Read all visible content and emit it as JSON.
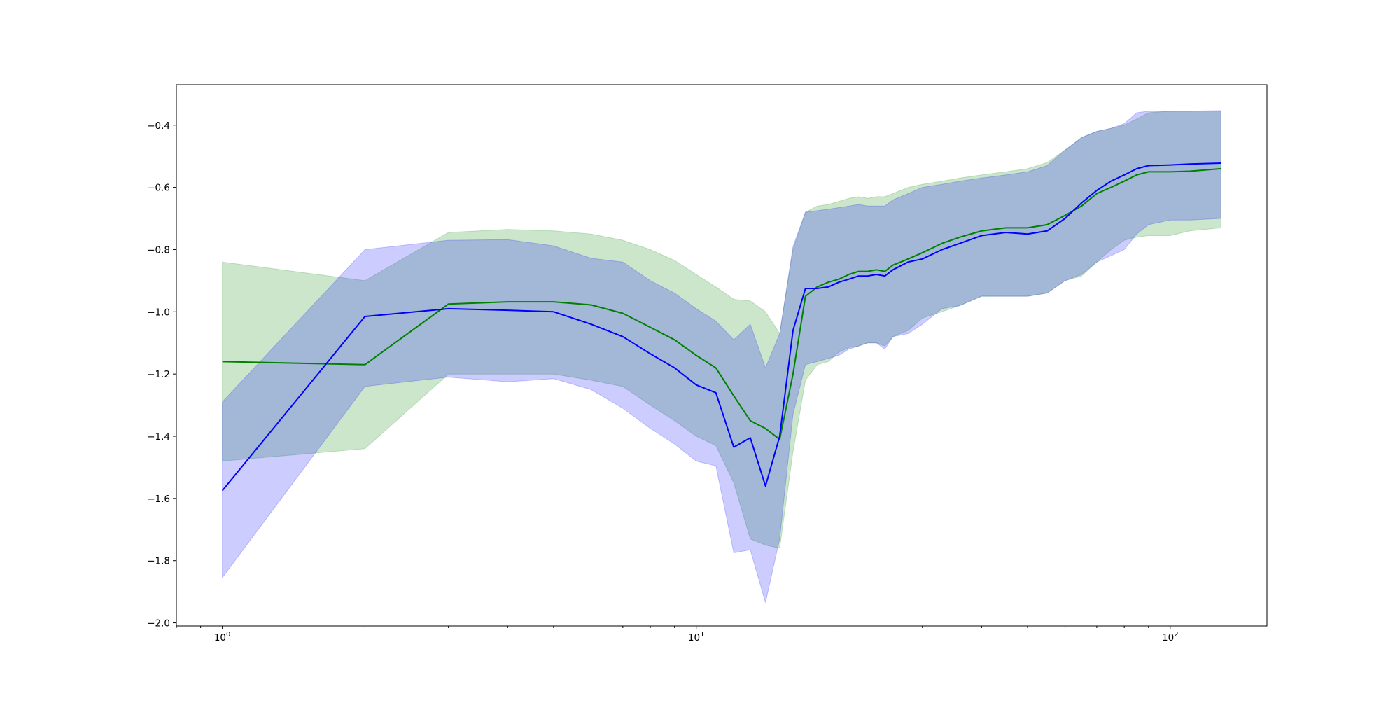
{
  "chart_data": {
    "type": "line",
    "xscale": "log",
    "xlim": [
      0.8,
      160
    ],
    "ylim": [
      -2.01,
      -0.27
    ],
    "x_ticks": [
      {
        "value": 1,
        "base": "10",
        "exp": "0"
      },
      {
        "value": 10,
        "base": "10",
        "exp": "1"
      },
      {
        "value": 100,
        "base": "10",
        "exp": "2"
      }
    ],
    "y_ticks": [
      {
        "value": -0.4,
        "label": "−0.4"
      },
      {
        "value": -0.6,
        "label": "−0.6"
      },
      {
        "value": -0.8,
        "label": "−0.8"
      },
      {
        "value": -1.0,
        "label": "−1.0"
      },
      {
        "value": -1.2,
        "label": "−1.2"
      },
      {
        "value": -1.4,
        "label": "−1.4"
      },
      {
        "value": -1.6,
        "label": "−1.6"
      },
      {
        "value": -1.8,
        "label": "−1.8"
      },
      {
        "value": -2.0,
        "label": "−2.0"
      }
    ],
    "grid": false,
    "legend": "none",
    "series": [
      {
        "color": "#008000",
        "band_color": "#008000",
        "band_opacity": 0.2,
        "x": [
          1,
          2,
          3,
          4,
          5,
          6,
          7,
          8,
          9,
          10,
          11,
          12,
          13,
          14,
          15,
          16,
          17,
          18,
          19,
          20,
          21,
          22,
          23,
          24,
          25,
          26,
          28,
          30,
          33,
          36,
          40,
          45,
          50,
          55,
          60,
          65,
          70,
          75,
          80,
          85,
          90,
          100,
          110,
          128
        ],
        "mean": [
          -1.16,
          -1.17,
          -0.975,
          -0.968,
          -0.968,
          -0.978,
          -1.005,
          -1.05,
          -1.09,
          -1.14,
          -1.18,
          -1.27,
          -1.35,
          -1.375,
          -1.41,
          -1.2,
          -0.95,
          -0.92,
          -0.905,
          -0.895,
          -0.88,
          -0.87,
          -0.87,
          -0.865,
          -0.87,
          -0.85,
          -0.83,
          -0.81,
          -0.78,
          -0.76,
          -0.74,
          -0.73,
          -0.73,
          -0.72,
          -0.69,
          -0.66,
          -0.62,
          -0.6,
          -0.58,
          -0.56,
          -0.55,
          -0.55,
          -0.548,
          -0.54
        ],
        "upper": [
          -0.84,
          -0.9,
          -0.745,
          -0.735,
          -0.74,
          -0.75,
          -0.77,
          -0.8,
          -0.835,
          -0.88,
          -0.92,
          -0.96,
          -0.965,
          -1.0,
          -1.07,
          -0.8,
          -0.68,
          -0.66,
          -0.655,
          -0.645,
          -0.635,
          -0.63,
          -0.635,
          -0.63,
          -0.63,
          -0.62,
          -0.6,
          -0.59,
          -0.58,
          -0.57,
          -0.56,
          -0.55,
          -0.54,
          -0.52,
          -0.48,
          -0.44,
          -0.42,
          -0.41,
          -0.4,
          -0.38,
          -0.36,
          -0.355,
          -0.355,
          -0.355
        ],
        "lower": [
          -1.48,
          -1.44,
          -1.2,
          -1.2,
          -1.2,
          -1.22,
          -1.24,
          -1.3,
          -1.35,
          -1.4,
          -1.43,
          -1.55,
          -1.73,
          -1.75,
          -1.76,
          -1.45,
          -1.22,
          -1.17,
          -1.16,
          -1.13,
          -1.115,
          -1.11,
          -1.1,
          -1.1,
          -1.11,
          -1.08,
          -1.06,
          -1.02,
          -1.0,
          -0.98,
          -0.95,
          -0.95,
          -0.95,
          -0.94,
          -0.9,
          -0.885,
          -0.84,
          -0.8,
          -0.77,
          -0.76,
          -0.755,
          -0.755,
          -0.74,
          -0.73
        ]
      },
      {
        "color": "#0000ff",
        "band_color": "#0000ff",
        "band_opacity": 0.2,
        "x": [
          1,
          2,
          3,
          4,
          5,
          6,
          7,
          8,
          9,
          10,
          11,
          12,
          13,
          14,
          15,
          16,
          17,
          18,
          19,
          20,
          21,
          22,
          23,
          24,
          25,
          26,
          28,
          30,
          33,
          36,
          40,
          45,
          50,
          55,
          60,
          65,
          70,
          75,
          80,
          85,
          90,
          100,
          110,
          128
        ],
        "mean": [
          -1.575,
          -1.015,
          -0.99,
          -0.995,
          -1.0,
          -1.04,
          -1.08,
          -1.135,
          -1.18,
          -1.235,
          -1.26,
          -1.435,
          -1.405,
          -1.56,
          -1.4,
          -1.06,
          -0.925,
          -0.925,
          -0.92,
          -0.905,
          -0.895,
          -0.885,
          -0.885,
          -0.88,
          -0.885,
          -0.865,
          -0.84,
          -0.83,
          -0.8,
          -0.78,
          -0.755,
          -0.745,
          -0.75,
          -0.74,
          -0.7,
          -0.65,
          -0.61,
          -0.58,
          -0.56,
          -0.54,
          -0.53,
          -0.528,
          -0.525,
          -0.522
        ],
        "upper": [
          -1.29,
          -0.8,
          -0.77,
          -0.768,
          -0.788,
          -0.828,
          -0.84,
          -0.9,
          -0.94,
          -0.99,
          -1.03,
          -1.09,
          -1.04,
          -1.18,
          -1.07,
          -0.79,
          -0.68,
          -0.675,
          -0.67,
          -0.665,
          -0.66,
          -0.655,
          -0.66,
          -0.66,
          -0.66,
          -0.64,
          -0.62,
          -0.6,
          -0.59,
          -0.58,
          -0.57,
          -0.56,
          -0.55,
          -0.53,
          -0.48,
          -0.44,
          -0.42,
          -0.41,
          -0.395,
          -0.36,
          -0.355,
          -0.355,
          -0.355,
          -0.353
        ],
        "lower": [
          -1.855,
          -1.24,
          -1.21,
          -1.225,
          -1.215,
          -1.25,
          -1.31,
          -1.375,
          -1.425,
          -1.48,
          -1.495,
          -1.775,
          -1.765,
          -1.935,
          -1.73,
          -1.33,
          -1.17,
          -1.16,
          -1.15,
          -1.14,
          -1.12,
          -1.11,
          -1.1,
          -1.1,
          -1.12,
          -1.08,
          -1.07,
          -1.04,
          -0.99,
          -0.98,
          -0.95,
          -0.95,
          -0.95,
          -0.94,
          -0.9,
          -0.88,
          -0.84,
          -0.82,
          -0.8,
          -0.75,
          -0.72,
          -0.705,
          -0.705,
          -0.7
        ]
      }
    ]
  }
}
